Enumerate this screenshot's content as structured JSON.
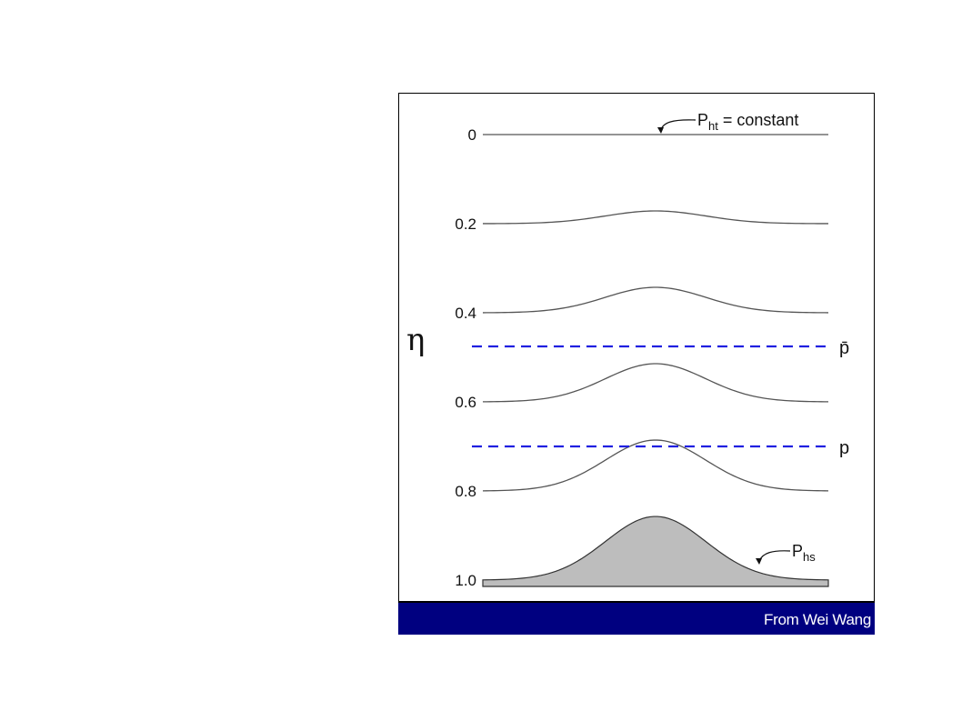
{
  "figure": {
    "axis_symbol": "η",
    "eta_levels": [
      {
        "label": "0",
        "value": 0.0,
        "bump": 0
      },
      {
        "label": "0.2",
        "value": 0.2,
        "bump": 14
      },
      {
        "label": "0.4",
        "value": 0.4,
        "bump": 28
      },
      {
        "label": "0.6",
        "value": 0.6,
        "bump": 42
      },
      {
        "label": "0.8",
        "value": 0.8,
        "bump": 56
      },
      {
        "label": "1.0",
        "value": 1.0,
        "bump": 70
      }
    ],
    "pressure_lines": [
      {
        "label": "p̄"
      },
      {
        "label": "p"
      }
    ],
    "top_annotation": {
      "main": "P",
      "sub": "ht",
      "rest": " = constant"
    },
    "surface_annotation": {
      "main": "P",
      "sub": "hs"
    },
    "colors": {
      "pressure_line": "#2020e0",
      "terrain_fill": "#bdbdbd",
      "curve": "#555555",
      "credit_bar": "#000080"
    }
  },
  "credit": "From Wei Wang"
}
